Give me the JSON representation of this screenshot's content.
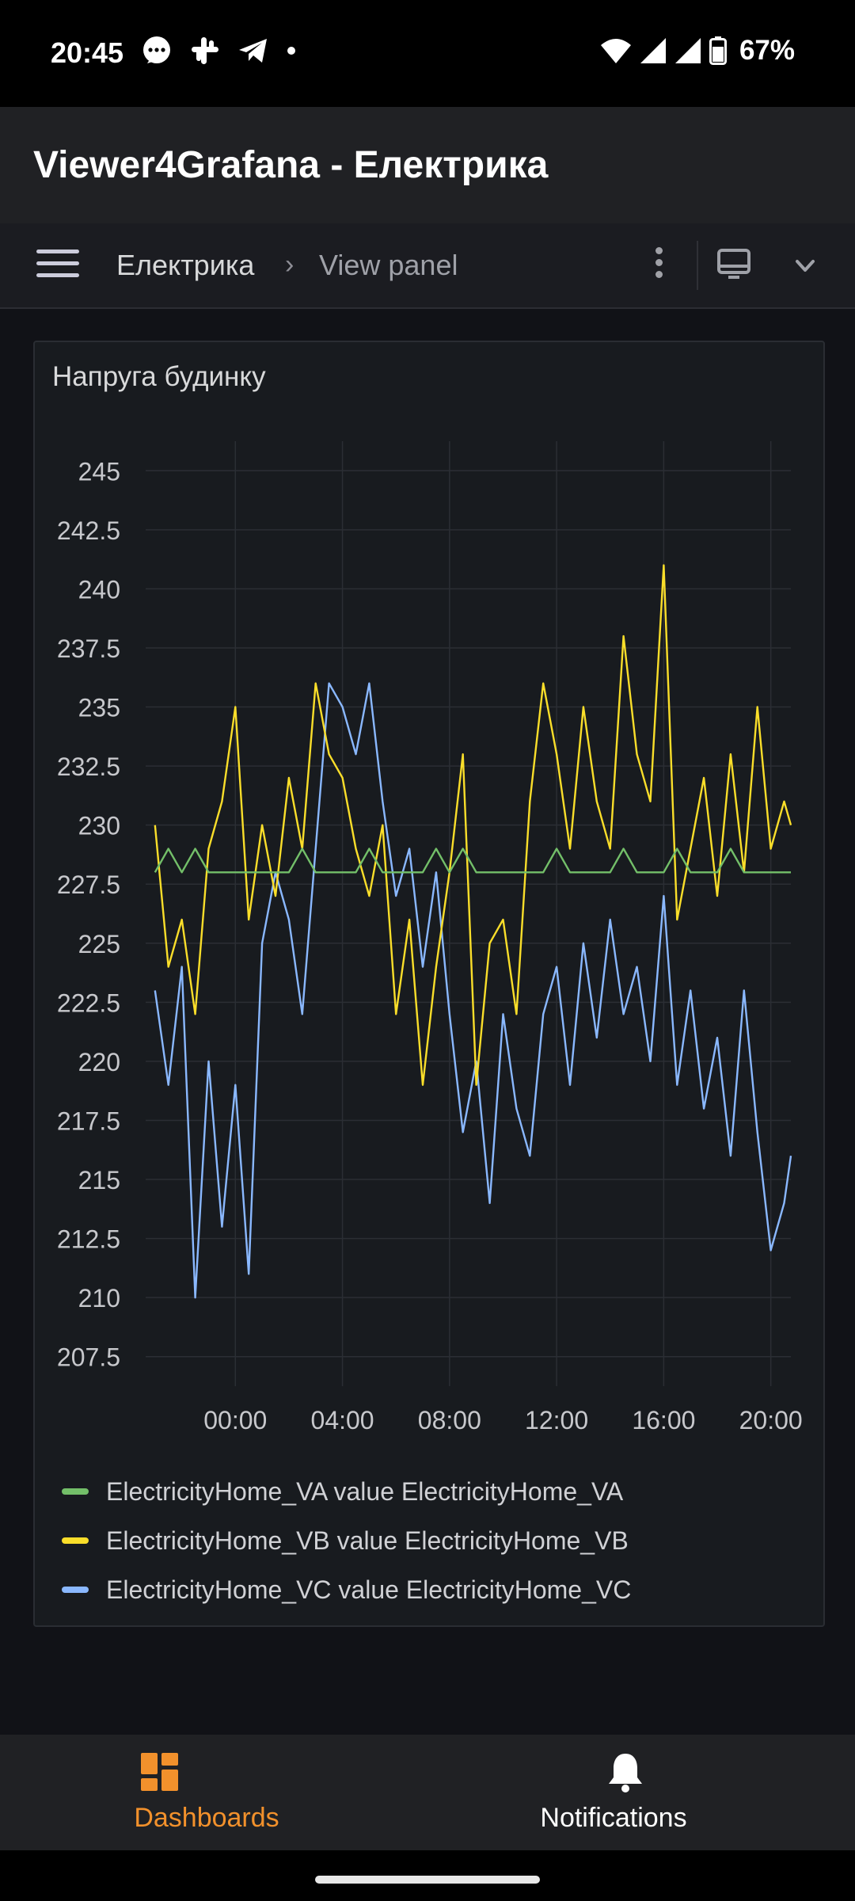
{
  "status_bar": {
    "time": "20:45",
    "battery": "67%",
    "icons": [
      "messages-icon",
      "slack-icon",
      "telegram-icon",
      "dot-icon",
      "wifi-icon",
      "signal-icon",
      "signal-icon",
      "battery-icon"
    ]
  },
  "app_bar": {
    "title": "Viewer4Grafana - Електрика"
  },
  "toolbar": {
    "breadcrumb_home": "Електрика",
    "breadcrumb_separator": "›",
    "breadcrumb_current": "View panel"
  },
  "panel": {
    "title": "Напруга будинку"
  },
  "chart_data": {
    "type": "line",
    "title": "Напруга будинку",
    "xlabel": "",
    "ylabel": "",
    "ylim": [
      206.25,
      246.25
    ],
    "x_ticks": [
      "00:00",
      "04:00",
      "08:00",
      "12:00",
      "16:00",
      "20:00"
    ],
    "y_ticks": [
      "245",
      "242.5",
      "240",
      "237.5",
      "235",
      "232.5",
      "230",
      "227.5",
      "225",
      "222.5",
      "220",
      "217.5",
      "215",
      "212.5",
      "210",
      "207.5"
    ],
    "x_hours": [
      -3,
      -2.5,
      -2,
      -1.5,
      -1,
      -0.5,
      0,
      0.5,
      1,
      1.5,
      2,
      2.5,
      3,
      3.5,
      4,
      4.5,
      5,
      5.5,
      6,
      6.5,
      7,
      7.5,
      8,
      8.5,
      9,
      9.5,
      10,
      10.5,
      11,
      11.5,
      12,
      12.5,
      13,
      13.5,
      14,
      14.5,
      15,
      15.5,
      16,
      16.5,
      17,
      17.5,
      18,
      18.5,
      19,
      19.5,
      20,
      20.5,
      20.75
    ],
    "grid": true,
    "legend_position": "bottom",
    "colors": {
      "VA": "#73bf69",
      "VB": "#fade2a",
      "VC": "#8ab8ff"
    },
    "series": [
      {
        "name": "ElectricityHome_VA value ElectricityHome_VA",
        "color": "#73bf69",
        "values": [
          228,
          229,
          228,
          229,
          228,
          228,
          228,
          228,
          228,
          228,
          228,
          229,
          228,
          228,
          228,
          228,
          229,
          228,
          228,
          228,
          228,
          229,
          228,
          229,
          228,
          228,
          228,
          228,
          228,
          228,
          229,
          228,
          228,
          228,
          228,
          229,
          228,
          228,
          228,
          229,
          228,
          228,
          228,
          229,
          228,
          228,
          228,
          228,
          228
        ]
      },
      {
        "name": "ElectricityHome_VB value ElectricityHome_VB",
        "color": "#fade2a",
        "values": [
          230,
          224,
          226,
          222,
          229,
          231,
          235,
          226,
          230,
          227,
          232,
          229,
          236,
          233,
          232,
          229,
          227,
          230,
          222,
          226,
          219,
          224,
          228,
          233,
          219,
          225,
          226,
          222,
          231,
          236,
          233,
          229,
          235,
          231,
          229,
          238,
          233,
          231,
          241,
          226,
          229,
          232,
          227,
          233,
          228,
          235,
          229,
          231,
          230
        ]
      },
      {
        "name": "ElectricityHome_VC value ElectricityHome_VC",
        "color": "#8ab8ff",
        "values": [
          223,
          219,
          224,
          210,
          220,
          213,
          219,
          211,
          225,
          228,
          226,
          222,
          229,
          236,
          235,
          233,
          236,
          231,
          227,
          229,
          224,
          228,
          222,
          217,
          220,
          214,
          222,
          218,
          216,
          222,
          224,
          219,
          225,
          221,
          226,
          222,
          224,
          220,
          227,
          219,
          223,
          218,
          221,
          216,
          223,
          217,
          212,
          214,
          216
        ]
      }
    ]
  },
  "bottom_nav": {
    "dashboards_label": "Dashboards",
    "notifications_label": "Notifications"
  }
}
